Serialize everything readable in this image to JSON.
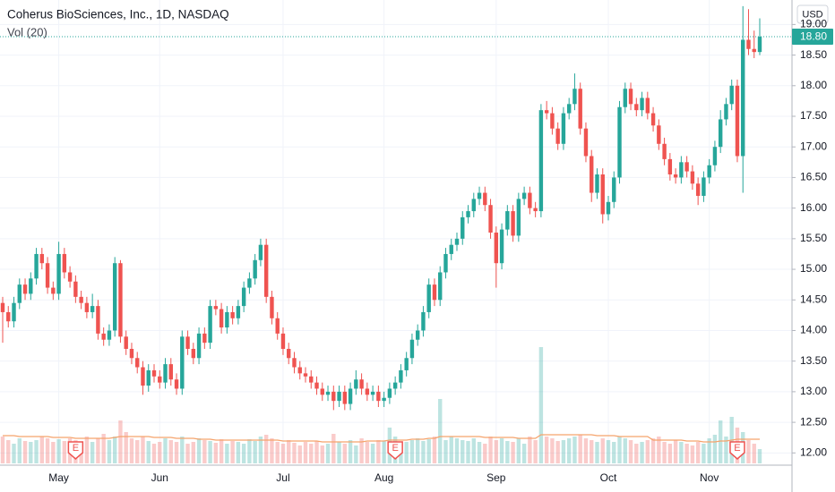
{
  "chart_data": {
    "type": "candlestick",
    "title": "Coherus BioSciences, Inc., 1D, NASDAQ",
    "volume_title": "Vol (20)",
    "currency": "USD",
    "last_price": 18.8,
    "last_price_label": "18.80",
    "colors": {
      "up": "#26a69a",
      "down": "#ef5350",
      "volume_ma": "#f5a36c"
    },
    "grid": true,
    "ylim": [
      11.8,
      19.4
    ],
    "yticks": [
      {
        "value": 12,
        "label": "12.00"
      },
      {
        "value": 12.5,
        "label": "12.50"
      },
      {
        "value": 13,
        "label": "13.00"
      },
      {
        "value": 13.5,
        "label": "13.50"
      },
      {
        "value": 14,
        "label": "14.00"
      },
      {
        "value": 14.5,
        "label": "14.50"
      },
      {
        "value": 15,
        "label": "15.00"
      },
      {
        "value": 15.5,
        "label": "15.50"
      },
      {
        "value": 16,
        "label": "16.00"
      },
      {
        "value": 16.5,
        "label": "16.50"
      },
      {
        "value": 17,
        "label": "17.00"
      },
      {
        "value": 17.5,
        "label": "17.50"
      },
      {
        "value": 18,
        "label": "18.00"
      },
      {
        "value": 18.5,
        "label": "18.50"
      },
      {
        "value": 19,
        "label": "19.00"
      }
    ],
    "categories": [
      null,
      null,
      null,
      null,
      null,
      null,
      null,
      null,
      null,
      null,
      "May",
      null,
      null,
      null,
      null,
      null,
      null,
      null,
      null,
      null,
      null,
      null,
      null,
      null,
      null,
      null,
      null,
      null,
      "Jun",
      null,
      null,
      null,
      null,
      null,
      null,
      null,
      null,
      null,
      null,
      null,
      null,
      null,
      null,
      null,
      null,
      null,
      null,
      null,
      null,
      null,
      "Jul",
      null,
      null,
      null,
      null,
      null,
      null,
      null,
      null,
      null,
      null,
      null,
      null,
      null,
      null,
      null,
      null,
      null,
      "Aug",
      null,
      null,
      null,
      null,
      null,
      null,
      null,
      null,
      null,
      null,
      null,
      null,
      null,
      null,
      null,
      null,
      null,
      null,
      null,
      "Sep",
      null,
      null,
      null,
      null,
      null,
      null,
      null,
      null,
      null,
      null,
      null,
      null,
      null,
      null,
      null,
      null,
      null,
      null,
      null,
      "Oct",
      null,
      null,
      null,
      null,
      null,
      null,
      null,
      null,
      null,
      null,
      null,
      null,
      null,
      null,
      null,
      null,
      null,
      "Nov",
      null,
      null,
      null,
      null,
      null,
      null,
      null,
      null,
      null
    ],
    "events": [
      null,
      null,
      null,
      null,
      null,
      null,
      null,
      null,
      null,
      null,
      null,
      null,
      null,
      "E",
      null,
      null,
      null,
      null,
      null,
      null,
      null,
      null,
      null,
      null,
      null,
      null,
      null,
      null,
      null,
      null,
      null,
      null,
      null,
      null,
      null,
      null,
      null,
      null,
      null,
      null,
      null,
      null,
      null,
      null,
      null,
      null,
      null,
      null,
      null,
      null,
      null,
      null,
      null,
      null,
      null,
      null,
      null,
      null,
      null,
      null,
      null,
      null,
      null,
      null,
      null,
      null,
      null,
      null,
      null,
      null,
      "E",
      null,
      null,
      null,
      null,
      null,
      null,
      null,
      null,
      null,
      null,
      null,
      null,
      null,
      null,
      null,
      null,
      null,
      null,
      null,
      null,
      null,
      null,
      null,
      null,
      null,
      null,
      null,
      null,
      null,
      null,
      null,
      null,
      null,
      null,
      null,
      null,
      null,
      null,
      null,
      null,
      null,
      null,
      null,
      null,
      null,
      null,
      null,
      null,
      null,
      null,
      null,
      null,
      null,
      null,
      null,
      null,
      null,
      null,
      null,
      null,
      "E",
      null,
      null,
      null,
      null
    ],
    "open": [
      14.45,
      14.3,
      14.15,
      14.45,
      14.75,
      14.6,
      14.85,
      15.25,
      15.1,
      14.7,
      14.6,
      15.25,
      14.95,
      14.8,
      14.55,
      14.45,
      14.3,
      14.4,
      13.95,
      13.85,
      14.0,
      15.1,
      13.9,
      13.7,
      13.55,
      13.4,
      13.1,
      13.35,
      13.25,
      13.15,
      13.45,
      13.2,
      13.05,
      13.9,
      13.7,
      13.55,
      13.95,
      13.8,
      14.4,
      14.35,
      14.05,
      14.3,
      14.2,
      14.4,
      14.7,
      14.85,
      15.15,
      15.4,
      14.55,
      14.2,
      13.95,
      13.7,
      13.55,
      13.4,
      13.3,
      13.25,
      13.15,
      13.05,
      12.95,
      13.0,
      12.85,
      13.0,
      12.8,
      13.05,
      13.2,
      13.05,
      12.95,
      13.0,
      12.85,
      12.9,
      13.05,
      13.15,
      13.35,
      13.55,
      13.85,
      14.0,
      14.3,
      14.75,
      14.5,
      14.95,
      15.25,
      15.4,
      15.5,
      15.85,
      15.95,
      16.15,
      16.25,
      16.05,
      15.6,
      15.1,
      15.65,
      15.95,
      15.55,
      16.15,
      16.25,
      16.0,
      15.95,
      17.6,
      17.55,
      17.3,
      17.05,
      17.55,
      17.7,
      17.95,
      17.3,
      16.85,
      16.25,
      16.55,
      15.9,
      16.1,
      16.5,
      17.65,
      17.95,
      17.7,
      17.6,
      17.8,
      17.55,
      17.35,
      17.05,
      16.8,
      16.55,
      16.5,
      16.75,
      16.6,
      16.4,
      16.2,
      16.5,
      16.7,
      17.0,
      17.45,
      17.7,
      18.0,
      16.85,
      18.75,
      18.6,
      18.55
    ],
    "high": [
      14.55,
      14.4,
      14.55,
      14.85,
      14.85,
      14.95,
      15.35,
      15.35,
      15.2,
      14.8,
      15.45,
      15.35,
      15.05,
      14.9,
      14.65,
      14.55,
      14.6,
      14.5,
      14.05,
      14.1,
      15.2,
      15.15,
      14.0,
      13.8,
      13.65,
      13.5,
      13.45,
      13.45,
      13.35,
      13.55,
      13.55,
      13.3,
      14.0,
      14.0,
      13.8,
      14.05,
      14.05,
      14.5,
      14.5,
      14.45,
      14.4,
      14.4,
      14.5,
      14.8,
      14.95,
      15.25,
      15.5,
      15.5,
      14.65,
      14.3,
      14.05,
      13.8,
      13.65,
      13.5,
      13.4,
      13.35,
      13.25,
      13.15,
      13.1,
      13.1,
      13.1,
      13.1,
      13.15,
      13.35,
      13.3,
      13.15,
      13.1,
      13.1,
      13.0,
      13.15,
      13.25,
      13.45,
      13.65,
      13.95,
      14.1,
      14.4,
      14.85,
      14.85,
      15.05,
      15.35,
      15.5,
      15.6,
      15.95,
      16.05,
      16.25,
      16.35,
      16.35,
      16.15,
      15.7,
      15.75,
      16.05,
      16.05,
      16.25,
      16.35,
      16.35,
      16.1,
      17.7,
      17.75,
      17.65,
      17.4,
      17.65,
      17.8,
      18.2,
      18.05,
      17.4,
      16.95,
      16.65,
      16.65,
      16.2,
      16.6,
      17.75,
      18.05,
      18.05,
      17.8,
      17.9,
      17.9,
      17.65,
      17.45,
      17.15,
      16.9,
      16.65,
      16.85,
      16.85,
      16.7,
      16.5,
      16.6,
      16.8,
      17.1,
      17.6,
      17.8,
      18.1,
      18.1,
      19.3,
      19.25,
      18.9,
      19.1
    ],
    "low": [
      13.8,
      14.05,
      14.05,
      14.35,
      14.5,
      14.5,
      14.75,
      15.0,
      14.6,
      14.5,
      14.5,
      14.85,
      14.7,
      14.45,
      14.35,
      14.2,
      14.2,
      13.85,
      13.75,
      13.75,
      13.9,
      13.8,
      13.6,
      13.45,
      13.3,
      12.95,
      13.0,
      13.15,
      13.05,
      13.05,
      13.1,
      12.95,
      12.95,
      13.6,
      13.45,
      13.45,
      13.7,
      13.7,
      14.25,
      13.95,
      13.95,
      14.1,
      14.1,
      14.3,
      14.6,
      14.75,
      15.05,
      14.45,
      14.1,
      13.85,
      13.6,
      13.45,
      13.3,
      13.2,
      13.15,
      13.05,
      12.95,
      12.85,
      12.85,
      12.7,
      12.75,
      12.7,
      12.7,
      12.95,
      12.95,
      12.85,
      12.85,
      12.75,
      12.75,
      12.8,
      12.95,
      13.05,
      13.25,
      13.45,
      13.75,
      13.9,
      14.2,
      14.4,
      14.4,
      14.85,
      15.15,
      15.3,
      15.4,
      15.75,
      15.85,
      16.05,
      15.95,
      15.5,
      14.7,
      15.0,
      15.55,
      15.45,
      15.45,
      16.05,
      15.9,
      15.85,
      15.85,
      17.45,
      17.2,
      16.95,
      16.95,
      17.45,
      17.6,
      17.2,
      16.75,
      16.1,
      16.15,
      15.75,
      15.8,
      16.0,
      16.4,
      17.55,
      17.6,
      17.5,
      17.5,
      17.45,
      17.25,
      16.95,
      16.7,
      16.45,
      16.4,
      16.4,
      16.5,
      16.3,
      16.05,
      16.1,
      16.4,
      16.6,
      16.9,
      17.35,
      17.6,
      16.75,
      16.25,
      18.5,
      18.45,
      18.5
    ],
    "close": [
      14.3,
      14.15,
      14.45,
      14.75,
      14.6,
      14.85,
      15.25,
      15.1,
      14.7,
      14.6,
      15.25,
      14.95,
      14.8,
      14.55,
      14.45,
      14.3,
      14.4,
      13.95,
      13.85,
      14.0,
      15.1,
      13.9,
      13.7,
      13.55,
      13.4,
      13.1,
      13.35,
      13.25,
      13.15,
      13.45,
      13.2,
      13.05,
      13.9,
      13.7,
      13.55,
      13.95,
      13.8,
      14.4,
      14.35,
      14.05,
      14.3,
      14.2,
      14.4,
      14.7,
      14.85,
      15.15,
      15.4,
      14.55,
      14.2,
      13.95,
      13.7,
      13.55,
      13.4,
      13.3,
      13.25,
      13.15,
      13.05,
      12.95,
      13.0,
      12.85,
      13.0,
      12.8,
      13.05,
      13.2,
      13.05,
      12.95,
      13.0,
      12.85,
      12.9,
      13.05,
      13.15,
      13.35,
      13.55,
      13.85,
      14.0,
      14.3,
      14.75,
      14.5,
      14.95,
      15.25,
      15.4,
      15.5,
      15.85,
      15.95,
      16.15,
      16.25,
      16.05,
      15.6,
      15.1,
      15.65,
      15.95,
      15.55,
      16.15,
      16.25,
      16.0,
      15.95,
      17.6,
      17.55,
      17.3,
      17.05,
      17.55,
      17.7,
      17.95,
      17.3,
      16.85,
      16.25,
      16.55,
      15.9,
      16.1,
      16.5,
      17.65,
      17.95,
      17.7,
      17.6,
      17.8,
      17.55,
      17.35,
      17.05,
      16.8,
      16.55,
      16.5,
      16.75,
      16.6,
      16.4,
      16.2,
      16.5,
      16.7,
      17.0,
      17.45,
      17.7,
      18.0,
      16.85,
      18.75,
      18.6,
      18.55,
      18.8
    ],
    "volume": [
      30,
      26,
      22,
      28,
      25,
      24,
      26,
      30,
      28,
      24,
      27,
      25,
      28,
      26,
      22,
      30,
      24,
      28,
      33,
      26,
      30,
      48,
      35,
      28,
      26,
      30,
      25,
      22,
      24,
      28,
      26,
      24,
      30,
      22,
      24,
      28,
      26,
      25,
      23,
      27,
      22,
      25,
      24,
      22,
      27,
      25,
      30,
      32,
      28,
      24,
      22,
      26,
      23,
      20,
      24,
      22,
      25,
      20,
      22,
      33,
      24,
      22,
      26,
      20,
      28,
      24,
      22,
      26,
      25,
      40,
      30,
      22,
      24,
      26,
      28,
      25,
      27,
      30,
      72,
      26,
      30,
      28,
      26,
      25,
      28,
      24,
      22,
      30,
      26,
      28,
      25,
      24,
      28,
      22,
      30,
      26,
      130,
      30,
      28,
      25,
      26,
      28,
      30,
      32,
      28,
      26,
      24,
      28,
      26,
      24,
      30,
      28,
      26,
      22,
      24,
      26,
      28,
      30,
      24,
      22,
      26,
      24,
      22,
      20,
      24,
      22,
      28,
      32,
      48,
      30,
      52,
      40,
      35,
      26,
      22,
      16
    ],
    "volume_ma": [
      31,
      31,
      31,
      30,
      30,
      30,
      30,
      30,
      30,
      29,
      29,
      29,
      29,
      28,
      28,
      28,
      28,
      28,
      28,
      28,
      29,
      30,
      30,
      30,
      30,
      30,
      30,
      29,
      29,
      29,
      29,
      28,
      28,
      28,
      28,
      27,
      27,
      27,
      26,
      26,
      26,
      26,
      26,
      26,
      26,
      26,
      26,
      26,
      26,
      26,
      25,
      25,
      25,
      25,
      25,
      25,
      25,
      24,
      24,
      24,
      24,
      24,
      24,
      24,
      24,
      25,
      25,
      25,
      25,
      26,
      26,
      26,
      26,
      27,
      27,
      27,
      28,
      28,
      30,
      30,
      30,
      30,
      30,
      30,
      30,
      30,
      29,
      29,
      29,
      29,
      29,
      29,
      28,
      28,
      28,
      28,
      32,
      32,
      32,
      32,
      32,
      32,
      32,
      32,
      32,
      32,
      31,
      31,
      31,
      31,
      30,
      30,
      30,
      30,
      30,
      30,
      26,
      26,
      26,
      26,
      26,
      26,
      25,
      25,
      25,
      24,
      24,
      24,
      25,
      25,
      26,
      27,
      27,
      27,
      27,
      27
    ]
  }
}
